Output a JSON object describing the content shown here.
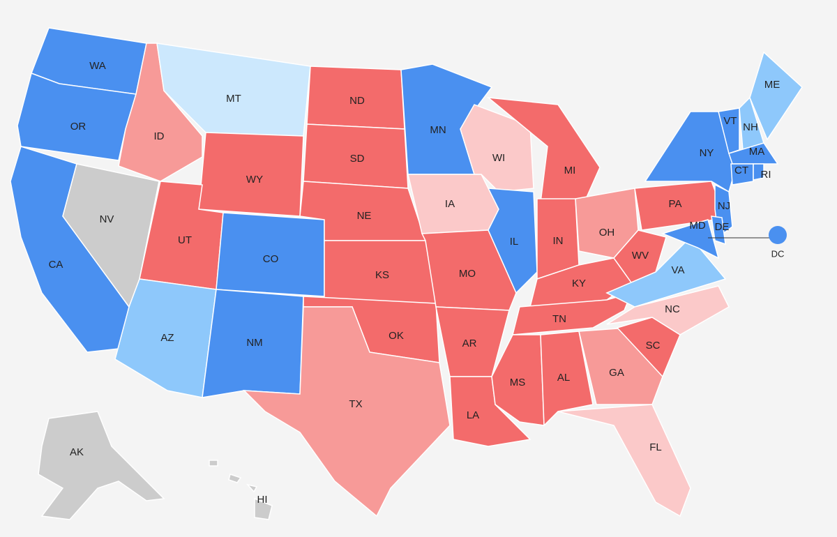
{
  "states": [
    {
      "label": "WA",
      "color": "#4a90f0"
    },
    {
      "label": "OR",
      "color": "#4a90f0"
    },
    {
      "label": "CA",
      "color": "#4a90f0"
    },
    {
      "label": "NV",
      "color": "#cccccc"
    },
    {
      "label": "ID",
      "color": "#f79a98"
    },
    {
      "label": "MT",
      "color": "#cce8fd"
    },
    {
      "label": "WY",
      "color": "#f36b6b"
    },
    {
      "label": "UT",
      "color": "#f36b6b"
    },
    {
      "label": "CO",
      "color": "#4a90f0"
    },
    {
      "label": "AZ",
      "color": "#8ec8fb"
    },
    {
      "label": "NM",
      "color": "#4a90f0"
    },
    {
      "label": "ND",
      "color": "#f36b6b"
    },
    {
      "label": "SD",
      "color": "#f36b6b"
    },
    {
      "label": "NE",
      "color": "#f36b6b"
    },
    {
      "label": "KS",
      "color": "#f36b6b"
    },
    {
      "label": "OK",
      "color": "#f36b6b"
    },
    {
      "label": "TX",
      "color": "#f79a98"
    },
    {
      "label": "MN",
      "color": "#4a90f0"
    },
    {
      "label": "IA",
      "color": "#fbc9c9"
    },
    {
      "label": "MO",
      "color": "#f36b6b"
    },
    {
      "label": "AR",
      "color": "#f36b6b"
    },
    {
      "label": "LA",
      "color": "#f36b6b"
    },
    {
      "label": "WI",
      "color": "#fbc9c9"
    },
    {
      "label": "IL",
      "color": "#4a90f0"
    },
    {
      "label": "MI",
      "color": "#f36b6b"
    },
    {
      "label": "IN",
      "color": "#f36b6b"
    },
    {
      "label": "OH",
      "color": "#f79a98"
    },
    {
      "label": "KY",
      "color": "#f36b6b"
    },
    {
      "label": "TN",
      "color": "#f36b6b"
    },
    {
      "label": "MS",
      "color": "#f36b6b"
    },
    {
      "label": "AL",
      "color": "#f36b6b"
    },
    {
      "label": "GA",
      "color": "#f79a98"
    },
    {
      "label": "FL",
      "color": "#fbc9c9"
    },
    {
      "label": "SC",
      "color": "#f36b6b"
    },
    {
      "label": "NC",
      "color": "#fbc9c9"
    },
    {
      "label": "VA",
      "color": "#8ec8fb"
    },
    {
      "label": "WV",
      "color": "#f36b6b"
    },
    {
      "label": "PA",
      "color": "#f36b6b"
    },
    {
      "label": "NY",
      "color": "#4a90f0"
    },
    {
      "label": "VT",
      "color": "#4a90f0"
    },
    {
      "label": "NH",
      "color": "#8ec8fb"
    },
    {
      "label": "ME",
      "color": "#8ec8fb"
    },
    {
      "label": "MA",
      "color": "#4a90f0"
    },
    {
      "label": "CT",
      "color": "#4a90f0"
    },
    {
      "label": "RI",
      "color": "#4a90f0"
    },
    {
      "label": "NJ",
      "color": "#4a90f0"
    },
    {
      "label": "DE",
      "color": "#4a90f0"
    },
    {
      "label": "MD",
      "color": "#4a90f0"
    },
    {
      "label": "DC",
      "color": "#4a90f0"
    },
    {
      "label": "AK",
      "color": "#cccccc"
    },
    {
      "label": "HI",
      "color": "#cccccc"
    }
  ]
}
